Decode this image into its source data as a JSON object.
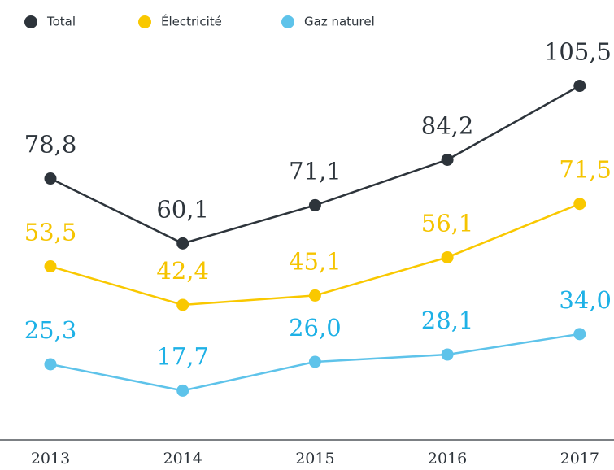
{
  "chart_data": {
    "type": "line",
    "categories": [
      "2013",
      "2014",
      "2015",
      "2016",
      "2017"
    ],
    "series": [
      {
        "name": "Total",
        "color": "#2d343b",
        "label_color": "#2d343b",
        "values": [
          78.8,
          60.1,
          71.1,
          84.2,
          105.5
        ],
        "value_labels": [
          "78,8",
          "60,1",
          "71,1",
          "84,2",
          "105,5"
        ]
      },
      {
        "name": "Électricité",
        "color": "#f9c800",
        "label_color": "#f5c400",
        "values": [
          53.5,
          42.4,
          45.1,
          56.1,
          71.5
        ],
        "value_labels": [
          "53,5",
          "42,4",
          "45,1",
          "56,1",
          "71,5"
        ]
      },
      {
        "name": "Gaz naturel",
        "color": "#5ec3ea",
        "label_color": "#1eb1e6",
        "values": [
          25.3,
          17.7,
          26.0,
          28.1,
          34.0
        ],
        "value_labels": [
          "25,3",
          "17,7",
          "26,0",
          "28,1",
          "34,0"
        ]
      }
    ],
    "legend": "top-left"
  }
}
